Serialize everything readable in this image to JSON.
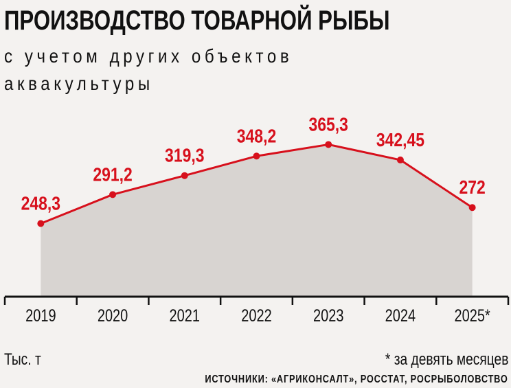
{
  "title": "ПРОИЗВОДСТВО ТОВАРНОЙ РЫБЫ",
  "subtitle": "с учетом других объектов аквакультуры",
  "unit_label": "Тыс. т",
  "footnote": "* за девять месяцев",
  "source": "ИСТОЧНИКИ: «АГРИКОНСАЛТ», РОССТАТ, РОСРЫБОЛОВСТВО",
  "colors": {
    "line": "#d7101c",
    "area": "#d8d4d1",
    "background": "#f4f2f0",
    "axis": "#111111"
  },
  "chart_data": {
    "type": "area",
    "categories": [
      "2019",
      "2020",
      "2021",
      "2022",
      "2023",
      "2024",
      "2025*"
    ],
    "values": [
      248.3,
      291.2,
      319.3,
      348.2,
      365.3,
      342.45,
      272
    ],
    "data_labels": [
      "248,3",
      "291,2",
      "319,3",
      "348,2",
      "365,3",
      "342,45",
      "272"
    ],
    "ylim": [
      140,
      440
    ],
    "grid": false,
    "legend": "none"
  }
}
